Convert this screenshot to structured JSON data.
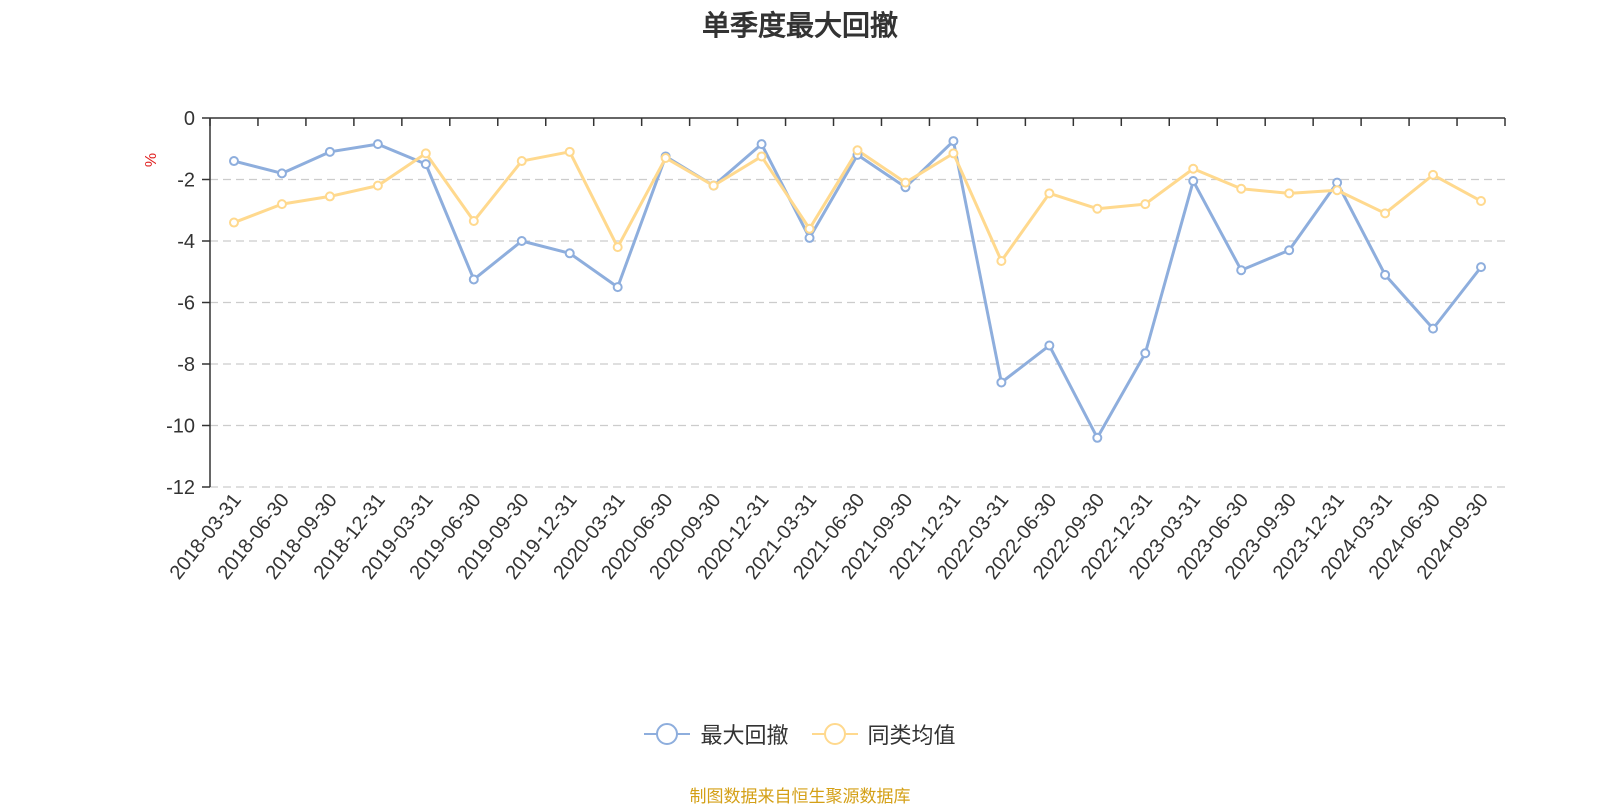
{
  "colors": {
    "series1": "#8eaedd",
    "series2": "#ffd98e",
    "unit": "#e02020",
    "source": "#d4a017",
    "grid": "#cccccc",
    "axis": "#333333"
  },
  "legend": {
    "placement": "bottom-center"
  },
  "source_text": "制图数据来自恒生聚源数据库",
  "chart_data": {
    "type": "line",
    "title": "单季度最大回撤",
    "ylabel": "%",
    "xlabel": "",
    "ylim": [
      -12,
      0
    ],
    "yticks": [
      0,
      -2,
      -4,
      -6,
      -8,
      -10,
      -12
    ],
    "grid": true,
    "categories": [
      "2018-03-31",
      "2018-06-30",
      "2018-09-30",
      "2018-12-31",
      "2019-03-31",
      "2019-06-30",
      "2019-09-30",
      "2019-12-31",
      "2020-03-31",
      "2020-06-30",
      "2020-09-30",
      "2020-12-31",
      "2021-03-31",
      "2021-06-30",
      "2021-09-30",
      "2021-12-31",
      "2022-03-31",
      "2022-06-30",
      "2022-09-30",
      "2022-12-31",
      "2023-03-31",
      "2023-06-30",
      "2023-09-30",
      "2023-12-31",
      "2024-03-31",
      "2024-06-30",
      "2024-09-30"
    ],
    "series": [
      {
        "name": "最大回撤",
        "color": "#8eaedd",
        "values": [
          -1.4,
          -1.8,
          -1.1,
          -0.85,
          -1.5,
          -5.25,
          -4.0,
          -4.4,
          -5.5,
          -1.25,
          -2.2,
          -0.85,
          -3.9,
          -1.2,
          -2.25,
          -0.75,
          -8.6,
          -7.4,
          -10.4,
          -7.65,
          -2.05,
          -4.95,
          -4.3,
          -2.1,
          -5.1,
          -6.85,
          -4.85
        ]
      },
      {
        "name": "同类均值",
        "color": "#ffd98e",
        "values": [
          -3.4,
          -2.8,
          -2.55,
          -2.2,
          -1.15,
          -3.35,
          -1.4,
          -1.1,
          -4.2,
          -1.3,
          -2.2,
          -1.25,
          -3.6,
          -1.05,
          -2.1,
          -1.15,
          -4.65,
          -2.45,
          -2.95,
          -2.8,
          -1.65,
          -2.3,
          -2.45,
          -2.35,
          -3.1,
          -1.85,
          -2.7
        ]
      }
    ]
  }
}
